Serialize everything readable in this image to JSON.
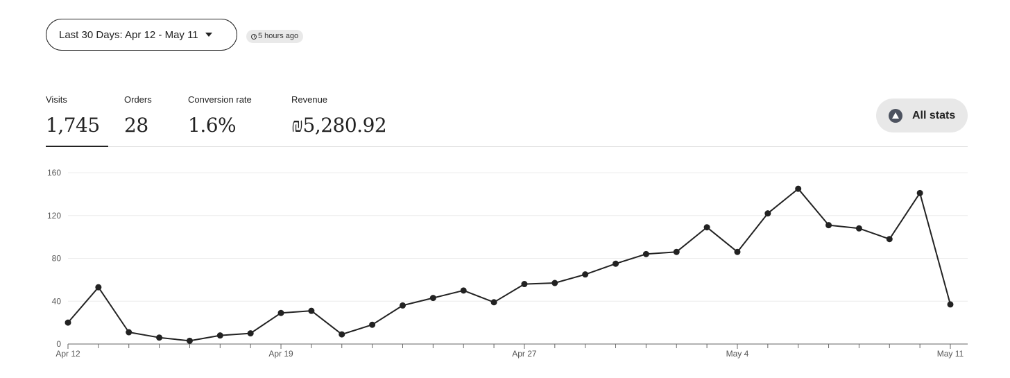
{
  "date_range": {
    "label": "Last 30 Days: Apr 12 - May 11"
  },
  "updated": {
    "label": "5 hours ago"
  },
  "stats": [
    {
      "label": "Visits",
      "value": "1,745"
    },
    {
      "label": "Orders",
      "value": "28"
    },
    {
      "label": "Conversion rate",
      "value": "1.6%"
    },
    {
      "label": "Revenue",
      "value": "₪5,280.92"
    }
  ],
  "all_stats": {
    "label": "All stats",
    "icon": "chart-up-icon"
  },
  "chart_data": {
    "type": "line",
    "title": "",
    "xlabel": "",
    "ylabel": "",
    "ylim": [
      0,
      160
    ],
    "yticks": [
      0,
      40,
      80,
      120,
      160
    ],
    "grid": true,
    "legend": "none",
    "x_tick_labels": [
      {
        "index": 0,
        "label": "Apr 12"
      },
      {
        "index": 7,
        "label": "Apr 19"
      },
      {
        "index": 15,
        "label": "Apr 27"
      },
      {
        "index": 22,
        "label": "May 4"
      },
      {
        "index": 29,
        "label": "May 11"
      }
    ],
    "x": [
      "Apr 12",
      "Apr 13",
      "Apr 14",
      "Apr 15",
      "Apr 16",
      "Apr 17",
      "Apr 18",
      "Apr 19",
      "Apr 20",
      "Apr 21",
      "Apr 22",
      "Apr 23",
      "Apr 24",
      "Apr 25",
      "Apr 26",
      "Apr 27",
      "Apr 28",
      "Apr 29",
      "Apr 30",
      "May 1",
      "May 2",
      "May 3",
      "May 4",
      "May 5",
      "May 6",
      "May 7",
      "May 8",
      "May 9",
      "May 10",
      "May 11"
    ],
    "series": [
      {
        "name": "",
        "color": "#222222",
        "values": [
          20,
          53,
          11,
          6,
          3,
          8,
          10,
          29,
          31,
          9,
          18,
          36,
          43,
          50,
          39,
          56,
          57,
          65,
          75,
          84,
          86,
          109,
          86,
          122,
          145,
          111,
          108,
          98,
          141,
          37
        ]
      }
    ]
  }
}
